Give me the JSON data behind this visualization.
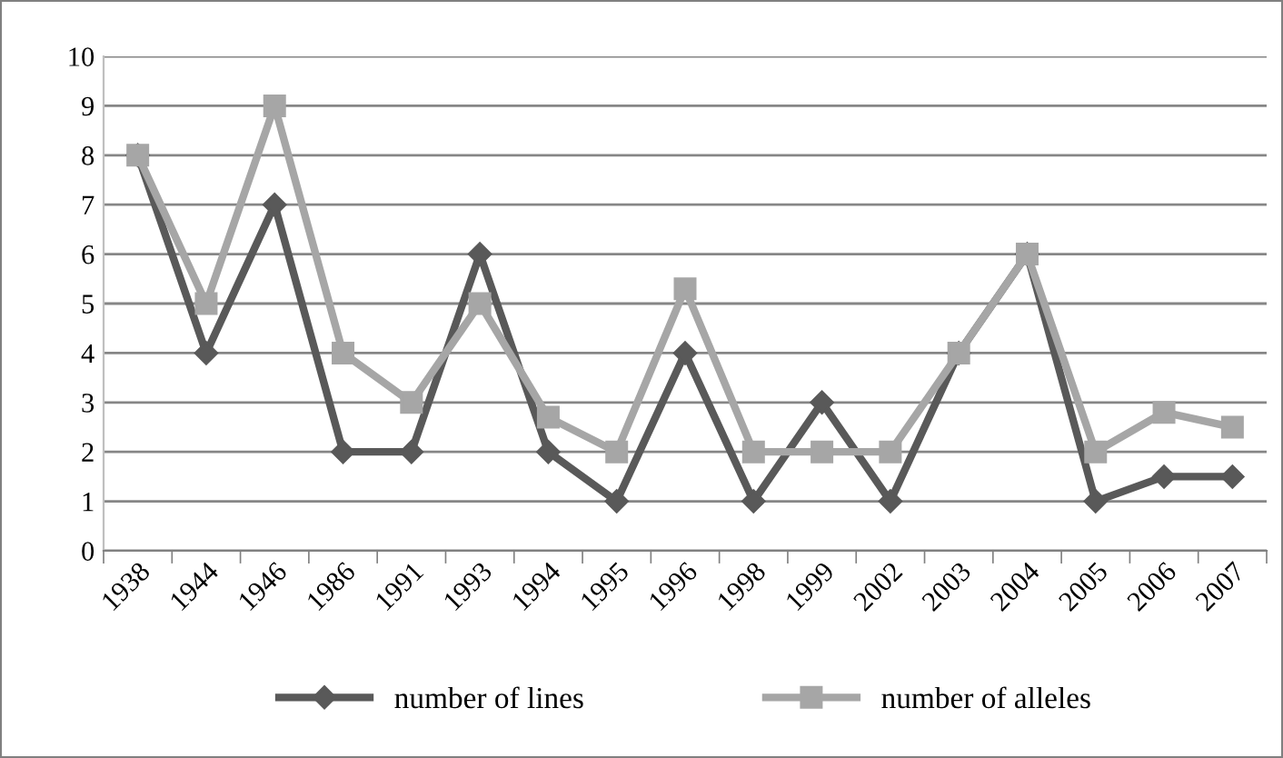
{
  "chart_data": {
    "type": "line",
    "categories": [
      "1938",
      "1944",
      "1946",
      "1986",
      "1991",
      "1993",
      "1994",
      "1995",
      "1996",
      "1998",
      "1999",
      "2002",
      "2003",
      "2004",
      "2005",
      "2006",
      "2007"
    ],
    "series": [
      {
        "name": "number of lines",
        "color": "#595959",
        "marker": "diamond",
        "values": [
          8,
          4,
          7,
          2,
          2,
          6,
          2,
          1,
          4,
          1,
          3,
          1,
          4,
          6,
          1,
          1.5,
          1.5
        ]
      },
      {
        "name": "number of alleles",
        "color": "#a6a6a6",
        "marker": "square",
        "values": [
          8,
          5,
          9,
          4,
          3,
          5,
          2.7,
          2,
          5.3,
          2,
          2,
          2,
          4,
          6,
          2,
          2.8,
          2.5
        ]
      }
    ],
    "ylim": [
      0,
      10
    ],
    "yticks": [
      0,
      1,
      2,
      3,
      4,
      5,
      6,
      7,
      8,
      9,
      10
    ],
    "grid": "y",
    "legend": "bottom",
    "line_style": "solid"
  }
}
